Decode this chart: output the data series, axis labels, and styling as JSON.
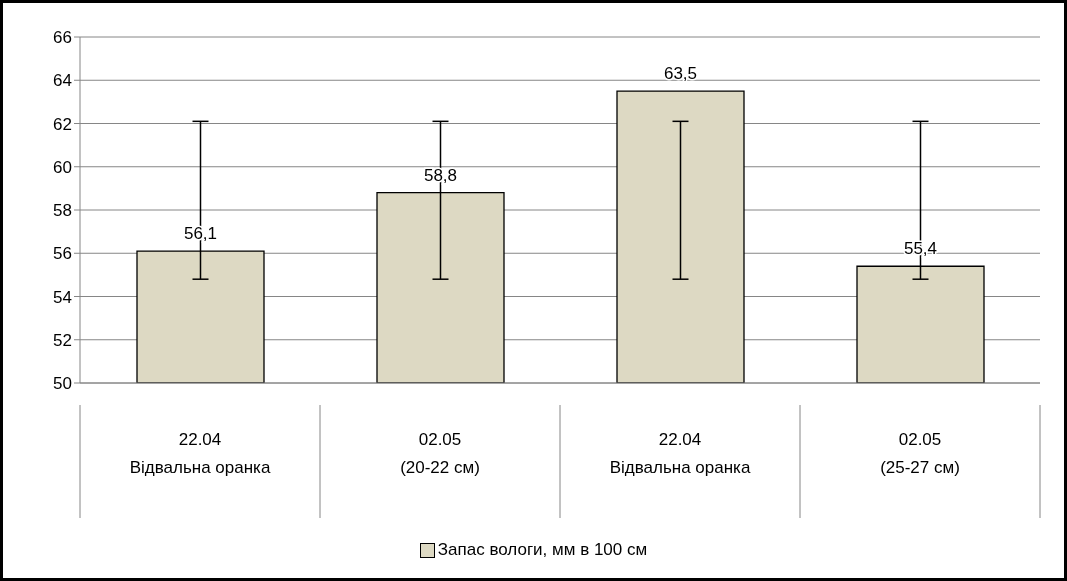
{
  "chart_data": {
    "type": "bar",
    "categories": [
      "22.04\nВідвальна оранка",
      "02.05\n(20-22 см)",
      "22.04\nВідвальна оранка",
      "02.05\n(25-27 см)"
    ],
    "series": [
      {
        "name": "Запас вологи, мм в 100 см",
        "color": "#ddd9c3",
        "values": [
          56.1,
          58.8,
          63.5,
          55.4
        ],
        "value_labels": [
          "56,1",
          "58,8",
          "63,5",
          "55,4"
        ],
        "errors": [
          [
            54.8,
            62.1
          ],
          [
            54.8,
            62.1
          ],
          [
            54.8,
            62.1
          ],
          [
            54.8,
            62.1
          ]
        ]
      }
    ],
    "ylim": [
      50,
      66
    ],
    "yticks": [
      50,
      52,
      54,
      56,
      58,
      60,
      62,
      64,
      66
    ],
    "grid": "y",
    "legend": "bottom"
  }
}
